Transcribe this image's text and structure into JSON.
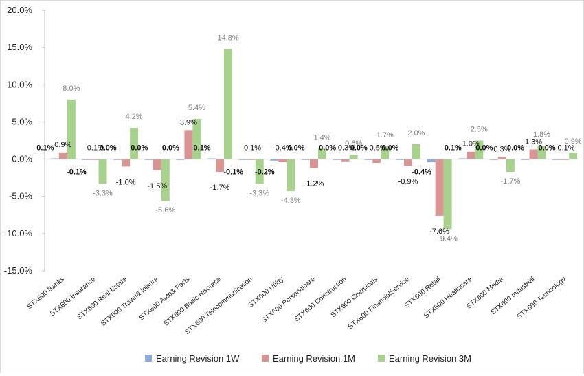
{
  "chart_data": {
    "type": "bar",
    "title": "",
    "xlabel": "",
    "ylabel": "",
    "ylim": [
      -15,
      20
    ],
    "yticks": [
      "20.0%",
      "15.0%",
      "10.0%",
      "5.0%",
      "0.0%",
      "-5.0%",
      "-10.0%",
      "-15.0%"
    ],
    "ytick_values": [
      20,
      15,
      10,
      5,
      0,
      -5,
      -10,
      -15
    ],
    "grid": false,
    "legend_position": "bottom",
    "categories": [
      "STX600 Banks",
      "STX600 Insurance",
      "STX600 Real Estate",
      "STX600 Travel& leisure",
      "STX600 Auto& Parts",
      "STX600 Basic resource",
      "STX600 Telecommunication",
      "STX600 Utility",
      "STX600 Personalcare",
      "STX600 Construction",
      "STX600 Chemicals",
      "STX600 FinancialService",
      "STX600 Retail",
      "STX600 Healthcare",
      "STX600 Media",
      "STX600 Industrial",
      "STX600 Technology"
    ],
    "series": [
      {
        "name": "Earning Revision 1W",
        "color": "#8faadc",
        "values": [
          0.1,
          -0.1,
          0.0,
          0.0,
          0.0,
          0.1,
          -0.1,
          -0.2,
          0.0,
          0.0,
          0.0,
          0.0,
          -0.4,
          0.1,
          0.0,
          0.0,
          0.0
        ],
        "labels": [
          "0.1%",
          "-0.1%",
          "0.0%",
          "0.0%",
          "0.0%",
          "0.1%",
          "-0.1%",
          "-0.2%",
          "0.0%",
          "0.0%",
          "0.0%",
          "0.0%",
          "-0.4%",
          "0.1%",
          "0.0%",
          "0.0%",
          "0.0%"
        ]
      },
      {
        "name": "Earning Revision 1M",
        "color": "#d99594",
        "values": [
          0.9,
          -0.1,
          -1.0,
          -1.5,
          3.9,
          -1.7,
          -0.1,
          -0.4,
          -1.2,
          -0.3,
          -0.5,
          -0.9,
          -7.6,
          1.0,
          0.3,
          1.3,
          -0.1
        ],
        "labels": [
          "0.9%",
          "-0.1%",
          "-1.0%",
          "-1.5%",
          "3.9%",
          "-1.7%",
          "-0.1%",
          "-0.4%",
          "-1.2%",
          "-0.3%",
          "-0.5%",
          "-0.9%",
          "-7.6%",
          "1.0%",
          "0.3%",
          "1.3%",
          "-0.1%"
        ]
      },
      {
        "name": "Earning Revision 3M",
        "color": "#a9d18e",
        "values": [
          8.0,
          -3.3,
          4.2,
          -5.6,
          5.4,
          14.8,
          -3.3,
          -4.3,
          1.4,
          0.6,
          1.7,
          2.0,
          -9.4,
          2.5,
          -1.7,
          1.8,
          0.9
        ],
        "labels": [
          "8.0%",
          "-3.3%",
          "4.2%",
          "-5.6%",
          "5.4%",
          "14.8%",
          "-3.3%",
          "-4.3%",
          "1.4%",
          "0.6%",
          "1.7%",
          "2.0%",
          "-9.4%",
          "2.5%",
          "-1.7%",
          "1.8%",
          "0.9%"
        ]
      }
    ]
  }
}
